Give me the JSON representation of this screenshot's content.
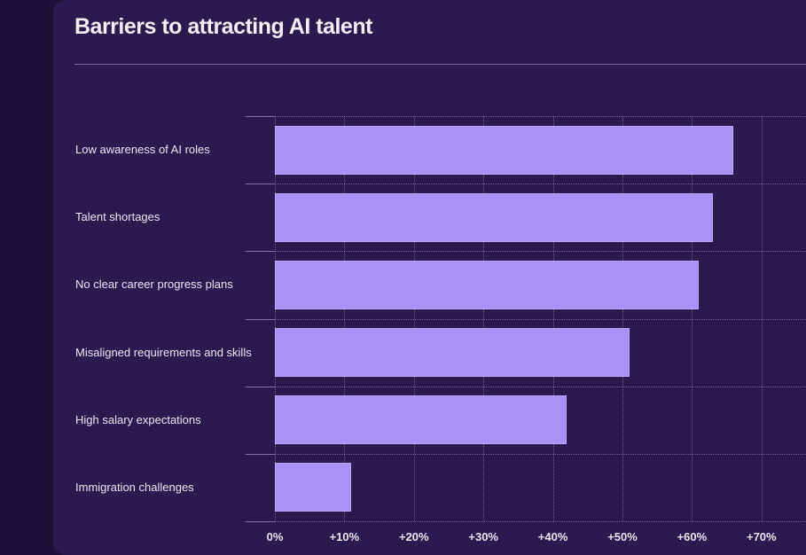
{
  "page": {
    "title": "Barriers to attracting AI talent"
  },
  "chart_data": {
    "type": "bar",
    "orientation": "horizontal",
    "title": "Barriers to attracting AI talent",
    "categories": [
      "Low awareness of AI roles",
      "Talent shortages",
      "No clear career progress plans",
      "Misaligned requirements and skills",
      "High salary expectations",
      "Immigration challenges"
    ],
    "values": [
      66,
      63,
      61,
      51,
      42,
      11
    ],
    "unit": "percent",
    "xlabel": "",
    "ylabel": "",
    "xlim": [
      0,
      76
    ],
    "x_ticks": [
      {
        "value": 0,
        "label": "0%"
      },
      {
        "value": 10,
        "label": "+10%"
      },
      {
        "value": 20,
        "label": "+20%"
      },
      {
        "value": 30,
        "label": "+30%"
      },
      {
        "value": 40,
        "label": "+40%"
      },
      {
        "value": 50,
        "label": "+50%"
      },
      {
        "value": 60,
        "label": "+60%"
      },
      {
        "value": 70,
        "label": "+70%"
      }
    ],
    "grid": "dotted",
    "legend": "none",
    "colors": {
      "bar": "#a791f2",
      "bar_border": "#cdbefc",
      "panel_background": "#2a1a4f",
      "page_background": "#1b1038",
      "grid_line": "#ded7f4",
      "axis_tick": "#bab0d6",
      "text": "#eae6f4",
      "title_text": "#f3f0fa"
    }
  }
}
